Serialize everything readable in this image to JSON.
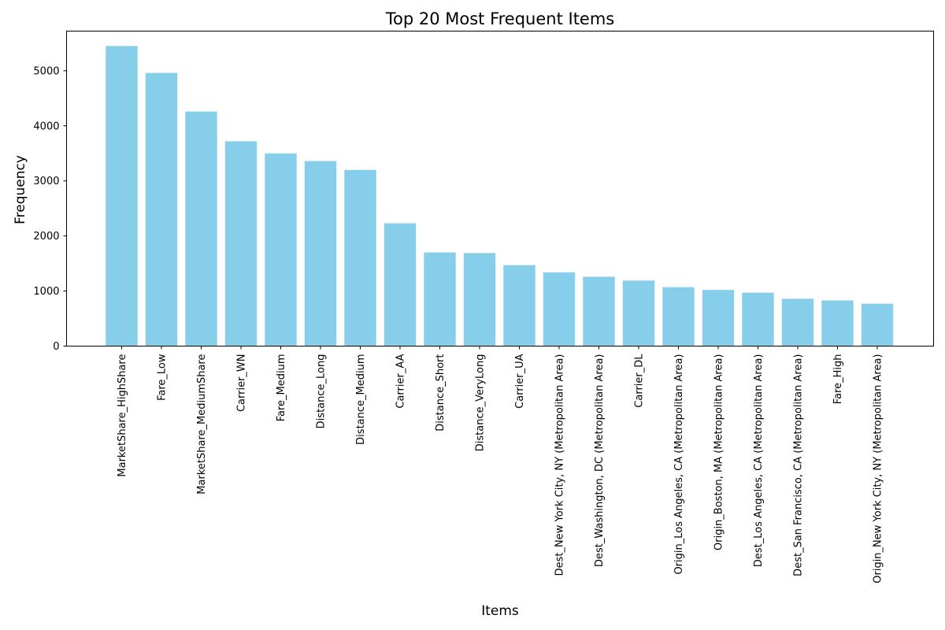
{
  "chart_data": {
    "type": "bar",
    "title": "Top 20 Most Frequent Items",
    "xlabel": "Items",
    "ylabel": "Frequency",
    "ylim": [
      0,
      5720
    ],
    "yticks": [
      0,
      1000,
      2000,
      3000,
      4000,
      5000
    ],
    "grid": false,
    "legend": "none",
    "bar_color": "#87CEEB",
    "categories": [
      "MarketShare_HighShare",
      "Fare_Low",
      "MarketShare_MediumShare",
      "Carrier_WN",
      "Fare_Medium",
      "Distance_Long",
      "Distance_Medium",
      "Carrier_AA",
      "Distance_Short",
      "Distance_VeryLong",
      "Carrier_UA",
      "Dest_New York City, NY (Metropolitan Area)",
      "Dest_Washington, DC (Metropolitan Area)",
      "Carrier_DL",
      "Origin_Los Angeles, CA (Metropolitan Area)",
      "Origin_Boston, MA (Metropolitan Area)",
      "Dest_Los Angeles, CA (Metropolitan Area)",
      "Dest_San Francisco, CA (Metropolitan Area)",
      "Fare_High",
      "Origin_New York City, NY (Metropolitan Area)"
    ],
    "values": [
      5450,
      4960,
      4260,
      3720,
      3500,
      3360,
      3200,
      2230,
      1700,
      1690,
      1470,
      1340,
      1260,
      1190,
      1070,
      1020,
      970,
      860,
      830,
      770
    ]
  }
}
